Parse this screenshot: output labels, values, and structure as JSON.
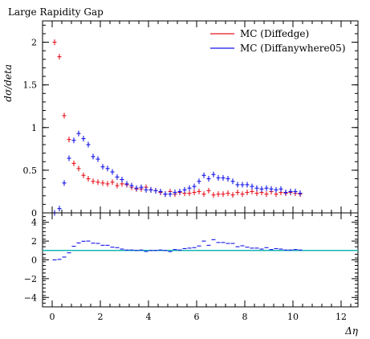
{
  "chart_data": [
    {
      "type": "scatter",
      "title": "Large Rapidity Gap",
      "xlabel": "",
      "ylabel": "dσ/deta",
      "xlim": [
        -0.4,
        12.7
      ],
      "ylim": [
        0,
        2.25
      ],
      "xticks": [
        0,
        2,
        4,
        6,
        8,
        10,
        12
      ],
      "yticks": [
        0,
        0.5,
        1,
        1.5,
        2
      ],
      "ytick_labels": [
        "0",
        "0.5",
        "1",
        "1.5",
        "2"
      ],
      "legend": {
        "placement": "top-right"
      },
      "series": [
        {
          "name": "MC (Diffedge)",
          "color": "#e8141e",
          "x": [
            0.1,
            0.3,
            0.5,
            0.7,
            0.9,
            1.1,
            1.3,
            1.5,
            1.7,
            1.9,
            2.1,
            2.3,
            2.5,
            2.7,
            2.9,
            3.1,
            3.3,
            3.5,
            3.7,
            3.9,
            4.1,
            4.3,
            4.5,
            4.7,
            4.9,
            5.1,
            5.3,
            5.5,
            5.7,
            5.9,
            6.1,
            6.3,
            6.5,
            6.7,
            6.9,
            7.1,
            7.3,
            7.5,
            7.7,
            7.9,
            8.1,
            8.3,
            8.5,
            8.7,
            8.9,
            9.1,
            9.3,
            9.5,
            9.7,
            9.9,
            10.1,
            10.3
          ],
          "values": [
            2.0,
            1.83,
            1.14,
            0.86,
            0.58,
            0.52,
            0.44,
            0.4,
            0.37,
            0.36,
            0.35,
            0.34,
            0.36,
            0.32,
            0.34,
            0.33,
            0.3,
            0.28,
            0.28,
            0.3,
            0.27,
            0.26,
            0.24,
            0.22,
            0.25,
            0.22,
            0.24,
            0.23,
            0.23,
            0.24,
            0.25,
            0.22,
            0.26,
            0.21,
            0.22,
            0.22,
            0.23,
            0.21,
            0.24,
            0.22,
            0.24,
            0.25,
            0.23,
            0.24,
            0.22,
            0.25,
            0.22,
            0.24,
            0.23,
            0.24,
            0.23,
            0.22
          ]
        },
        {
          "name": "MC (Diffanywhere05)",
          "color": "#1414e8",
          "x": [
            0.1,
            0.3,
            0.5,
            0.7,
            0.9,
            1.1,
            1.3,
            1.5,
            1.7,
            1.9,
            2.1,
            2.3,
            2.5,
            2.7,
            2.9,
            3.1,
            3.3,
            3.5,
            3.7,
            3.9,
            4.1,
            4.3,
            4.5,
            4.7,
            4.9,
            5.1,
            5.3,
            5.5,
            5.7,
            5.9,
            6.1,
            6.3,
            6.5,
            6.7,
            6.9,
            7.1,
            7.3,
            7.5,
            7.7,
            7.9,
            8.1,
            8.3,
            8.5,
            8.7,
            8.9,
            9.1,
            9.3,
            9.5,
            9.7,
            9.9,
            10.1,
            10.3
          ],
          "values": [
            0.0,
            0.05,
            0.35,
            0.64,
            0.85,
            0.93,
            0.87,
            0.8,
            0.66,
            0.63,
            0.54,
            0.52,
            0.48,
            0.42,
            0.39,
            0.34,
            0.32,
            0.29,
            0.3,
            0.27,
            0.27,
            0.26,
            0.25,
            0.22,
            0.22,
            0.24,
            0.25,
            0.27,
            0.29,
            0.31,
            0.37,
            0.44,
            0.4,
            0.45,
            0.41,
            0.41,
            0.4,
            0.37,
            0.33,
            0.33,
            0.33,
            0.31,
            0.29,
            0.28,
            0.29,
            0.28,
            0.27,
            0.28,
            0.24,
            0.25,
            0.25,
            0.23
          ]
        }
      ]
    },
    {
      "type": "scatter",
      "title": "",
      "xlabel": "Δη",
      "ylabel": "",
      "xlim": [
        -0.4,
        12.7
      ],
      "ylim": [
        -5,
        5
      ],
      "xticks": [
        0,
        2,
        4,
        6,
        8,
        10,
        12
      ],
      "yticks": [
        -4,
        -2,
        0,
        2,
        4
      ],
      "ytick_labels": [
        "−4",
        "−2",
        "0",
        "2",
        "4"
      ],
      "reference_line": {
        "y": 1,
        "color": "#14b4b4"
      },
      "series": [
        {
          "name": "MC (Diffanywhere05)",
          "color": "#1414e8",
          "x": [
            0.1,
            0.3,
            0.5,
            0.7,
            0.9,
            1.1,
            1.3,
            1.5,
            1.7,
            1.9,
            2.1,
            2.3,
            2.5,
            2.7,
            2.9,
            3.1,
            3.3,
            3.5,
            3.7,
            3.9,
            4.1,
            4.3,
            4.5,
            4.7,
            4.9,
            5.1,
            5.3,
            5.5,
            5.7,
            5.9,
            6.1,
            6.3,
            6.5,
            6.7,
            6.9,
            7.1,
            7.3,
            7.5,
            7.7,
            7.9,
            8.1,
            8.3,
            8.5,
            8.7,
            8.9,
            9.1,
            9.3,
            9.5,
            9.7,
            9.9,
            10.1,
            10.3
          ],
          "values": [
            0.0,
            0.05,
            0.3,
            0.75,
            1.45,
            1.8,
            1.98,
            2.0,
            1.78,
            1.75,
            1.55,
            1.55,
            1.35,
            1.3,
            1.15,
            1.05,
            1.05,
            1.0,
            1.05,
            0.9,
            1.0,
            1.0,
            1.05,
            1.0,
            0.88,
            1.1,
            1.05,
            1.2,
            1.25,
            1.3,
            1.48,
            2.0,
            1.55,
            2.15,
            1.85,
            1.85,
            1.75,
            1.75,
            1.4,
            1.5,
            1.35,
            1.25,
            1.25,
            1.15,
            1.3,
            1.1,
            1.2,
            1.15,
            1.05,
            1.05,
            1.1,
            1.05
          ]
        }
      ]
    }
  ],
  "legend_entries": [
    {
      "label": "MC (Diffedge)",
      "color": "#e8141e"
    },
    {
      "label": "MC (Diffanywhere05)",
      "color": "#1414e8"
    }
  ]
}
